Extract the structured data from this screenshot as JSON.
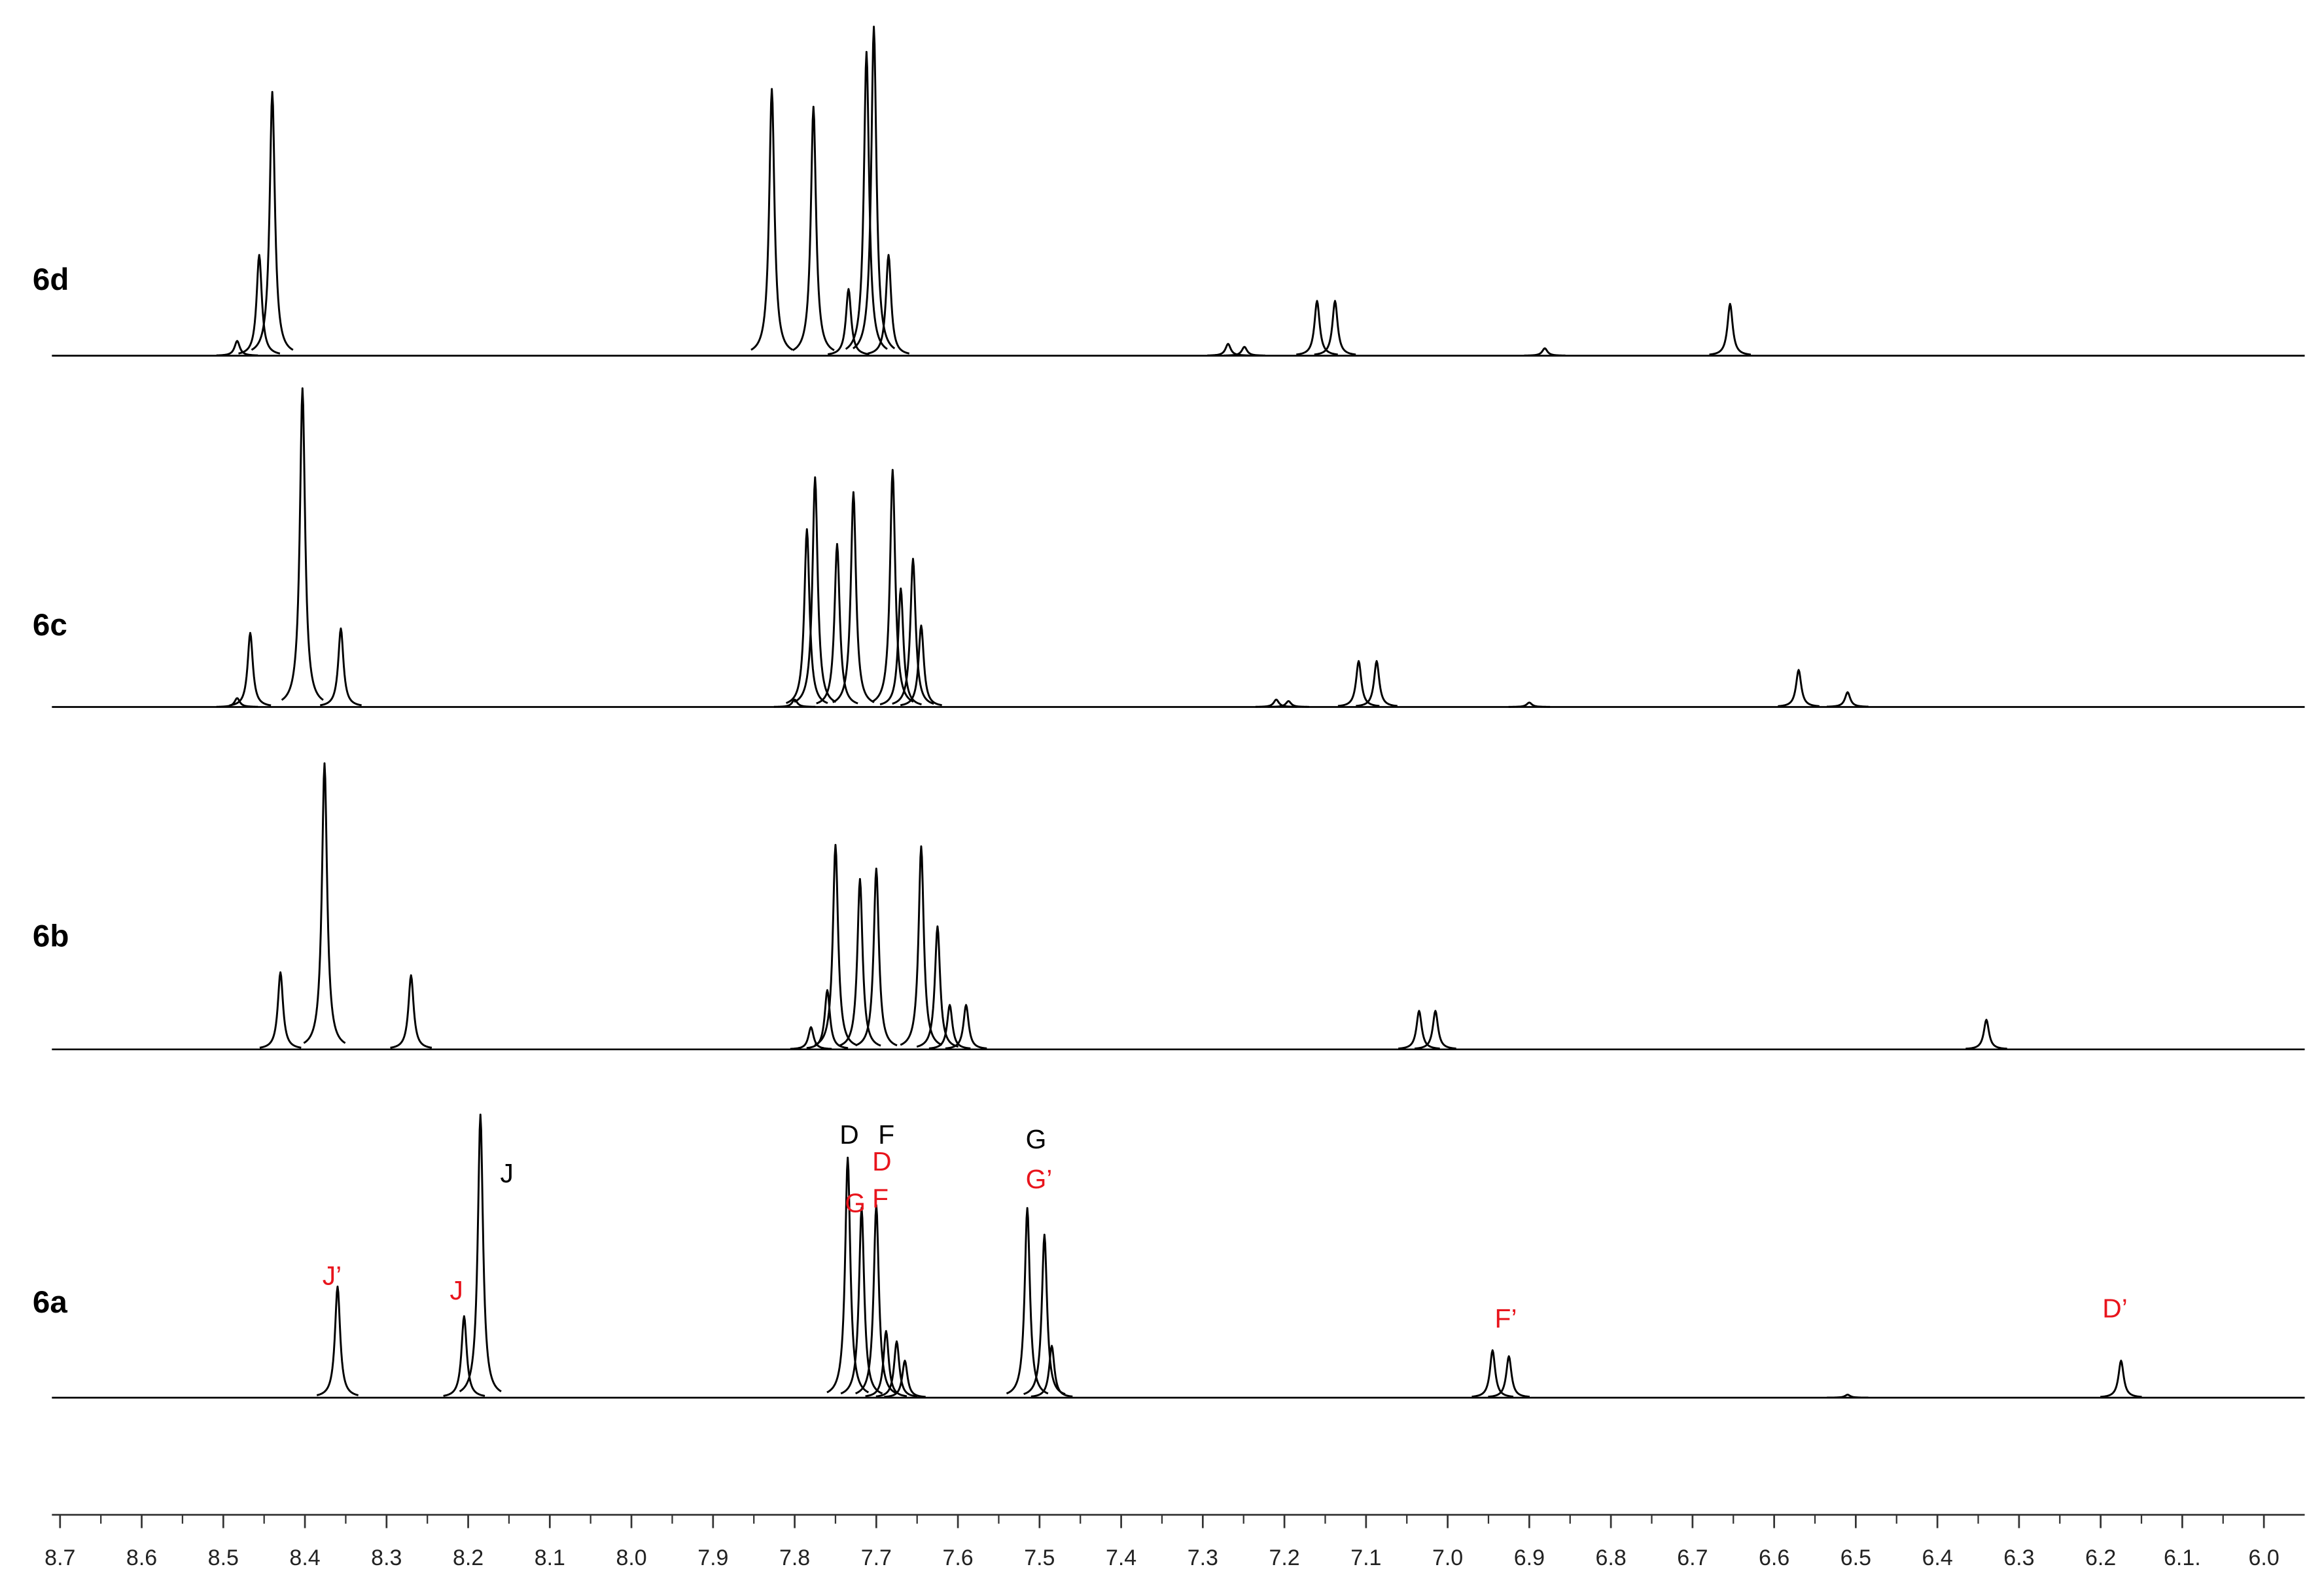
{
  "chart_data": {
    "type": "nmr-stack",
    "xlim": [
      8.71,
      5.95
    ],
    "xticks": [
      8.7,
      8.6,
      8.5,
      8.4,
      8.3,
      8.2,
      8.1,
      {
        "value": 8.0,
        "label": "8.0"
      },
      7.9,
      7.8,
      7.7,
      7.6,
      7.5,
      7.4,
      7.3,
      7.2,
      7.1,
      {
        "value": 7.0,
        "label": "7.0"
      },
      6.9,
      6.8,
      6.7,
      6.6,
      6.5,
      6.4,
      6.3,
      6.2,
      {
        "value": 6.1,
        "label": "6.1."
      },
      {
        "value": 6.0,
        "label": "6.0"
      }
    ],
    "xminorticks": [
      8.65,
      8.55,
      8.45,
      8.35,
      8.25,
      8.15,
      8.05,
      7.95,
      7.85,
      7.75,
      7.65,
      7.55,
      7.45,
      7.35,
      7.25,
      7.15,
      7.05,
      6.95,
      6.85,
      6.75,
      6.65,
      6.55,
      6.45,
      6.35,
      6.25,
      6.15,
      6.05
    ],
    "series": [
      {
        "name": "6d",
        "color": "#000000",
        "x": [
          8.483,
          8.456,
          8.44,
          7.828,
          7.777,
          7.734,
          7.712,
          7.703,
          7.685,
          7.269,
          7.249,
          7.16,
          7.138,
          6.881,
          6.654
        ],
        "values": [
          10,
          68,
          178,
          180,
          168,
          45,
          205,
          222,
          68,
          8,
          6,
          37,
          37,
          5,
          35
        ]
      },
      {
        "name": "6c",
        "color": "#000000",
        "x": [
          8.483,
          8.467,
          8.403,
          8.356,
          7.8,
          7.785,
          7.775,
          7.748,
          7.728,
          7.68,
          7.67,
          7.655,
          7.645,
          7.21,
          7.195,
          7.109,
          7.087,
          6.9,
          6.57,
          6.51
        ],
        "values": [
          6,
          50,
          215,
          53,
          5,
          120,
          155,
          110,
          145,
          160,
          80,
          100,
          55,
          5,
          4,
          31,
          31,
          3,
          25,
          10
        ]
      },
      {
        "name": "6b",
        "color": "#000000",
        "x": [
          8.43,
          8.376,
          8.27,
          7.78,
          7.76,
          7.75,
          7.72,
          7.7,
          7.645,
          7.625,
          7.61,
          7.59,
          7.035,
          7.015,
          6.34
        ],
        "values": [
          52,
          193,
          50,
          15,
          40,
          138,
          115,
          122,
          137,
          83,
          30,
          30,
          26,
          26,
          20
        ]
      },
      {
        "name": "6a",
        "color": "#000000",
        "x": [
          8.36,
          8.205,
          8.185,
          7.735,
          7.718,
          7.7,
          7.688,
          7.675,
          7.665,
          7.515,
          7.494,
          7.485,
          6.945,
          6.925,
          6.51,
          6.175
        ],
        "values": [
          75,
          55,
          191,
          162,
          128,
          130,
          45,
          38,
          25,
          128,
          110,
          35,
          32,
          28,
          2,
          25
        ]
      }
    ],
    "annotations": [
      {
        "text": "J’",
        "color": "#e8141c"
      },
      {
        "text": "J",
        "color": "#e8141c"
      },
      {
        "text": "J",
        "color": "#000000"
      },
      {
        "text": "D",
        "color": "#000000"
      },
      {
        "text": "F",
        "color": "#000000"
      },
      {
        "text": "D",
        "color": "#e8141c"
      },
      {
        "text": "G",
        "color": "#e8141c"
      },
      {
        "text": "F",
        "color": "#e8141c"
      },
      {
        "text": "G",
        "color": "#000000"
      },
      {
        "text": "G’",
        "color": "#e8141c"
      },
      {
        "text": "F’",
        "color": "#e8141c"
      },
      {
        "text": "D’",
        "color": "#e8141c"
      }
    ]
  }
}
